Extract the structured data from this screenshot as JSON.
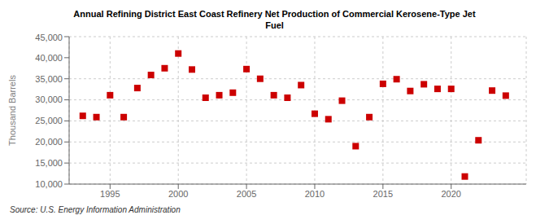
{
  "chart_data": {
    "type": "scatter",
    "title": "Annual Refining District East Coast Refinery Net Production of Commercial Kerosene-Type Jet\nFuel",
    "ylabel": "Thousand Barrels",
    "source": "Source: U.S. Energy Information Administration",
    "x": [
      1993,
      1994,
      1995,
      1996,
      1997,
      1998,
      1999,
      2000,
      2001,
      2002,
      2003,
      2004,
      2005,
      2006,
      2007,
      2008,
      2009,
      2010,
      2011,
      2012,
      2013,
      2014,
      2015,
      2016,
      2017,
      2018,
      2019,
      2020,
      2021,
      2022,
      2023,
      2024
    ],
    "values": [
      26200,
      25900,
      31100,
      25900,
      32800,
      35900,
      37500,
      41000,
      37200,
      30500,
      31100,
      31700,
      37300,
      35000,
      31100,
      30500,
      33500,
      26700,
      25400,
      29800,
      19000,
      25900,
      33800,
      34900,
      32100,
      33700,
      32600,
      32600,
      11800,
      20400,
      32200,
      31000
    ],
    "color": "#cc0000",
    "marker": "square",
    "xlim": [
      1992.0,
      2025.5
    ],
    "xticks": [
      1995,
      2000,
      2005,
      2010,
      2015,
      2020
    ],
    "ylim": [
      10000,
      45000
    ],
    "yticks": [
      {
        "value": 10000,
        "label": "10,000"
      },
      {
        "value": 15000,
        "label": "15,000"
      },
      {
        "value": 20000,
        "label": "20,000"
      },
      {
        "value": 25000,
        "label": "25,000"
      },
      {
        "value": 30000,
        "label": "30,000"
      },
      {
        "value": 35000,
        "label": "35,000"
      },
      {
        "value": 40000,
        "label": "40,000"
      },
      {
        "value": 45000,
        "label": "45,000"
      }
    ],
    "grid": true
  }
}
